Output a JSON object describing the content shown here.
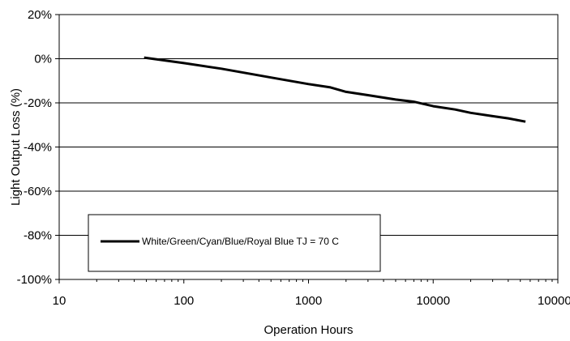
{
  "chart_data": {
    "type": "line",
    "xlabel": "Operation Hours",
    "ylabel": "Light Output Loss (%)",
    "xscale": "log",
    "xlim": [
      10,
      100000
    ],
    "ylim": [
      -100,
      20
    ],
    "x_ticks": [
      10,
      100,
      1000,
      10000,
      100000
    ],
    "x_tick_labels": [
      "10",
      "100",
      "1000",
      "10000",
      "100000"
    ],
    "y_ticks": [
      20,
      0,
      -20,
      -40,
      -60,
      -80,
      -100
    ],
    "y_tick_labels": [
      "20%",
      "0%",
      "-20%",
      "-40%",
      "-60%",
      "-80%",
      "-100%"
    ],
    "grid": "horizontal",
    "legend_position": "bottom-left",
    "series": [
      {
        "name": "White/Green/Cyan/Blue/Royal Blue TJ = 70 C",
        "color": "#000000",
        "x": [
          48,
          100,
          200,
          500,
          1000,
          1500,
          2000,
          3000,
          5000,
          7000,
          10000,
          15000,
          20000,
          30000,
          40000,
          55000
        ],
        "y": [
          0.5,
          -2,
          -4.5,
          -8.5,
          -11.5,
          -13,
          -15,
          -16.5,
          -18.5,
          -19.5,
          -21.5,
          -23,
          -24.5,
          -26,
          -27,
          -28.5
        ]
      }
    ]
  }
}
